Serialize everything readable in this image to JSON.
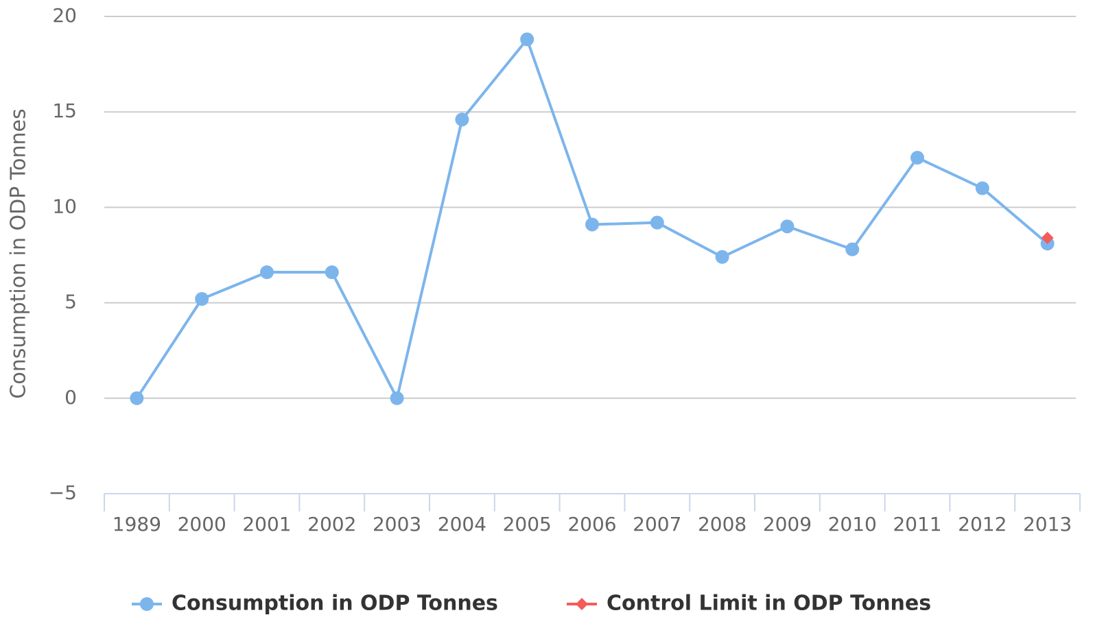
{
  "chart_data": {
    "type": "line",
    "y_axis_label": "Consumption in ODP Tonnes",
    "categories": [
      "1989",
      "2000",
      "2001",
      "2002",
      "2003",
      "2004",
      "2005",
      "2006",
      "2007",
      "2008",
      "2009",
      "2010",
      "2011",
      "2012",
      "2013"
    ],
    "series": [
      {
        "name": "Consumption in ODP Tonnes",
        "color": "#7cb5ec",
        "marker": "circle",
        "values": [
          0,
          5.2,
          6.6,
          6.6,
          0,
          14.6,
          18.8,
          9.1,
          9.2,
          7.4,
          9.0,
          7.8,
          12.6,
          11.0,
          8.1
        ]
      },
      {
        "name": "Control Limit in ODP Tonnes",
        "color": "#f45b5b",
        "marker": "diamond",
        "values": [
          null,
          null,
          null,
          null,
          null,
          null,
          null,
          null,
          null,
          null,
          null,
          null,
          null,
          null,
          8.4
        ]
      }
    ],
    "ylim": [
      -5,
      20
    ],
    "yticks": [
      {
        "value": -5,
        "label": "−5"
      },
      0,
      5,
      10,
      15,
      20
    ],
    "grid": true,
    "legend": "bottom"
  }
}
